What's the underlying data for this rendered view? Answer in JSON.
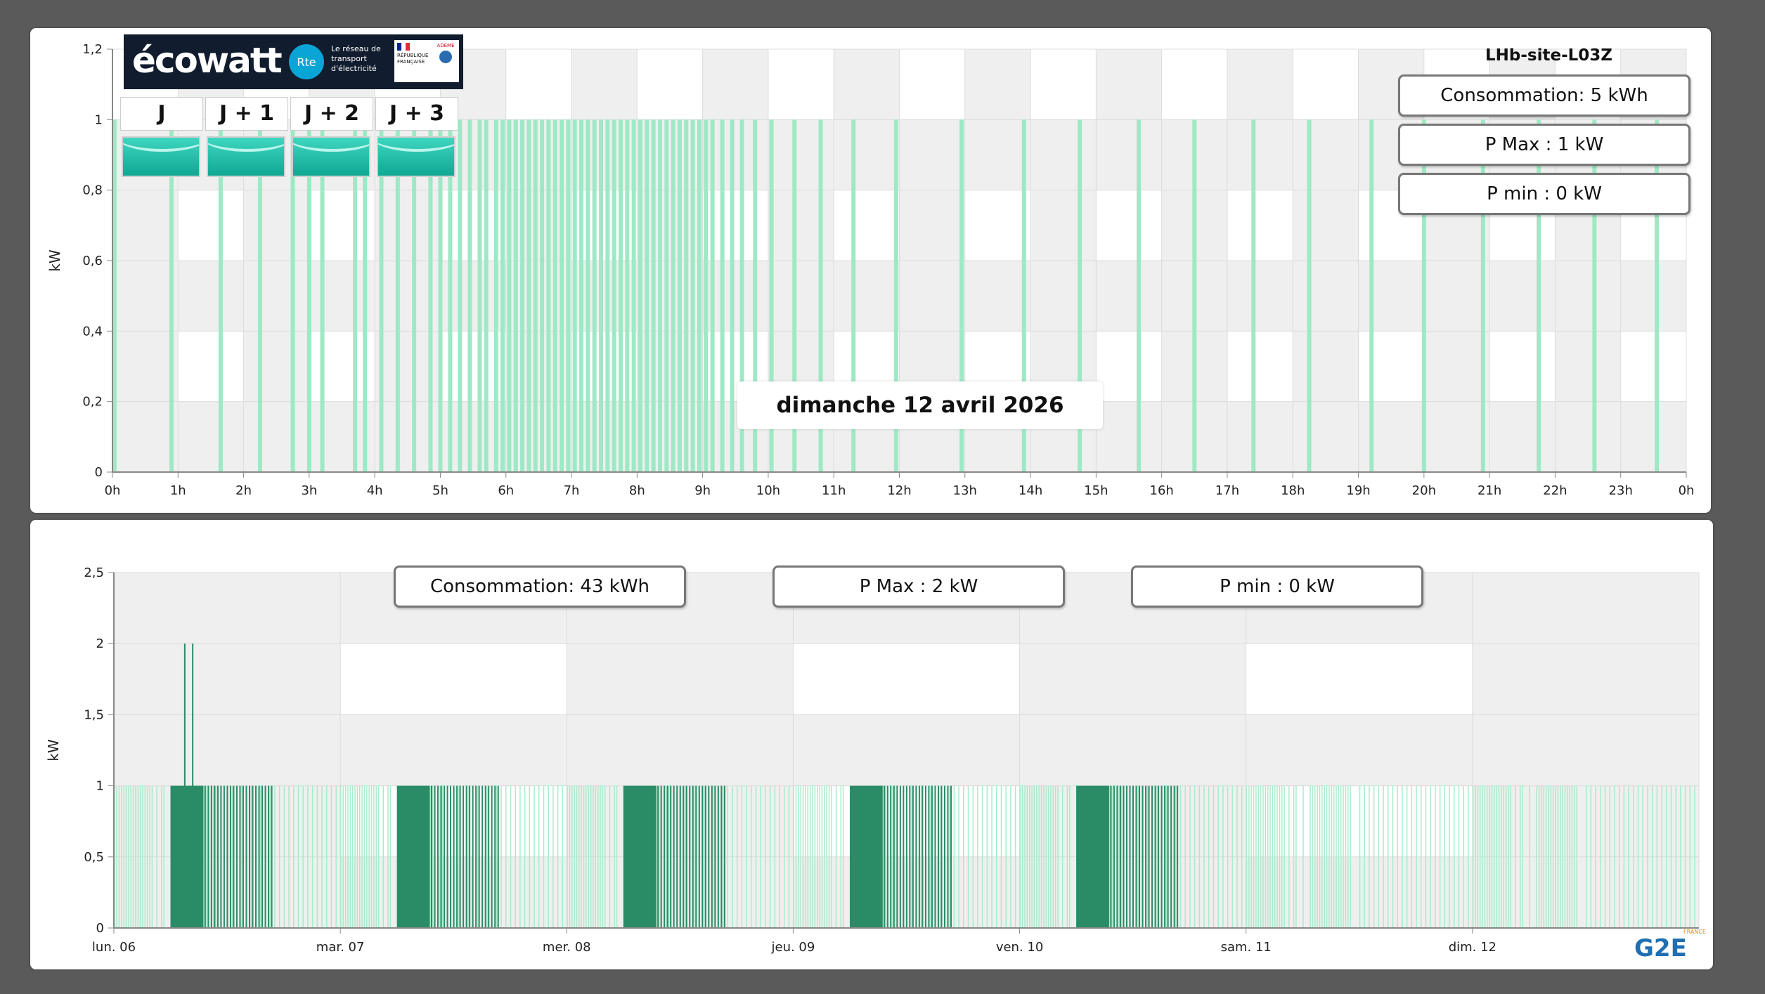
{
  "top_panel": {
    "site_name": "LHb-site-L03Z",
    "date_label": "dimanche 12 avril 2026",
    "consumption": "Consommation: 5 kWh",
    "pmax": "P Max :  1 kW",
    "pmin": "P min : 0 kW",
    "y_axis_title": "kW",
    "ecowatt": {
      "logo": "écowatt",
      "rte_logo": "Rte",
      "rte_text": "Le réseau de transport d'électricité",
      "gov_text": "RÉPUBLIQUE FRANÇAISE",
      "ademe_text": "ADEME",
      "days": [
        "J",
        "J + 1",
        "J + 2",
        "J + 3"
      ],
      "signal_color": "#1fbfa8"
    }
  },
  "bottom_panel": {
    "consumption": "Consommation: 43 kWh",
    "pmax": "P Max :  2 kW",
    "pmin": "P min : 0 kW",
    "y_axis_title": "kW"
  },
  "footer_logo": "G2E",
  "footer_logo_sup": "FRANCE",
  "chart_data": [
    {
      "type": "bar",
      "title": "dimanche 12 avril 2026",
      "xlabel": "",
      "ylabel": "kW",
      "ylim": [
        0,
        1.2
      ],
      "y_ticks": [
        "0",
        "0,2",
        "0,4",
        "0,6",
        "0,8",
        "1",
        "1,2"
      ],
      "x_ticks": [
        "0h",
        "1h",
        "2h",
        "3h",
        "4h",
        "5h",
        "6h",
        "7h",
        "8h",
        "9h",
        "10h",
        "11h",
        "12h",
        "13h",
        "14h",
        "15h",
        "16h",
        "17h",
        "18h",
        "19h",
        "20h",
        "21h",
        "22h",
        "23h",
        "0h"
      ],
      "series": [
        {
          "color": "#9ee9c5",
          "bars_hours": [
            0.03,
            0.9,
            1.65,
            2.25,
            2.75,
            3.0,
            3.2,
            3.7,
            3.85,
            4.1,
            4.35,
            4.6,
            4.85,
            5.0,
            5.15,
            5.3,
            5.45,
            5.6,
            5.7,
            5.85,
            5.95,
            6.05,
            6.15,
            6.25,
            6.35,
            6.45,
            6.55,
            6.65,
            6.75,
            6.85,
            6.95,
            7.05,
            7.15,
            7.25,
            7.35,
            7.45,
            7.55,
            7.65,
            7.75,
            7.85,
            7.95,
            8.05,
            8.15,
            8.25,
            8.35,
            8.45,
            8.55,
            8.65,
            8.75,
            8.85,
            8.95,
            9.05,
            9.15,
            9.3,
            9.45,
            9.6,
            9.8,
            10.05,
            10.4,
            10.8,
            11.3,
            11.95,
            12.95,
            13.9,
            14.75,
            15.65,
            16.5,
            17.4,
            18.25,
            19.2,
            20.0,
            20.9,
            21.75,
            22.6,
            23.55
          ],
          "value": 1
        }
      ]
    },
    {
      "type": "bar",
      "xlabel": "",
      "ylabel": "kW",
      "ylim": [
        0,
        2.5
      ],
      "y_ticks": [
        "0",
        "0,5",
        "1",
        "1,5",
        "2",
        "2,5"
      ],
      "x_ticks": [
        "lun. 06",
        "mar. 07",
        "mer. 08",
        "jeu. 09",
        "ven. 10",
        "sam. 11",
        "dim. 12"
      ],
      "series": [
        {
          "light_color": "#a8ecc9",
          "dark_color": "#2a8c66",
          "peak_days": [
            0.31,
            0.345
          ],
          "peak_value": 2,
          "base_value": 1
        }
      ]
    }
  ]
}
